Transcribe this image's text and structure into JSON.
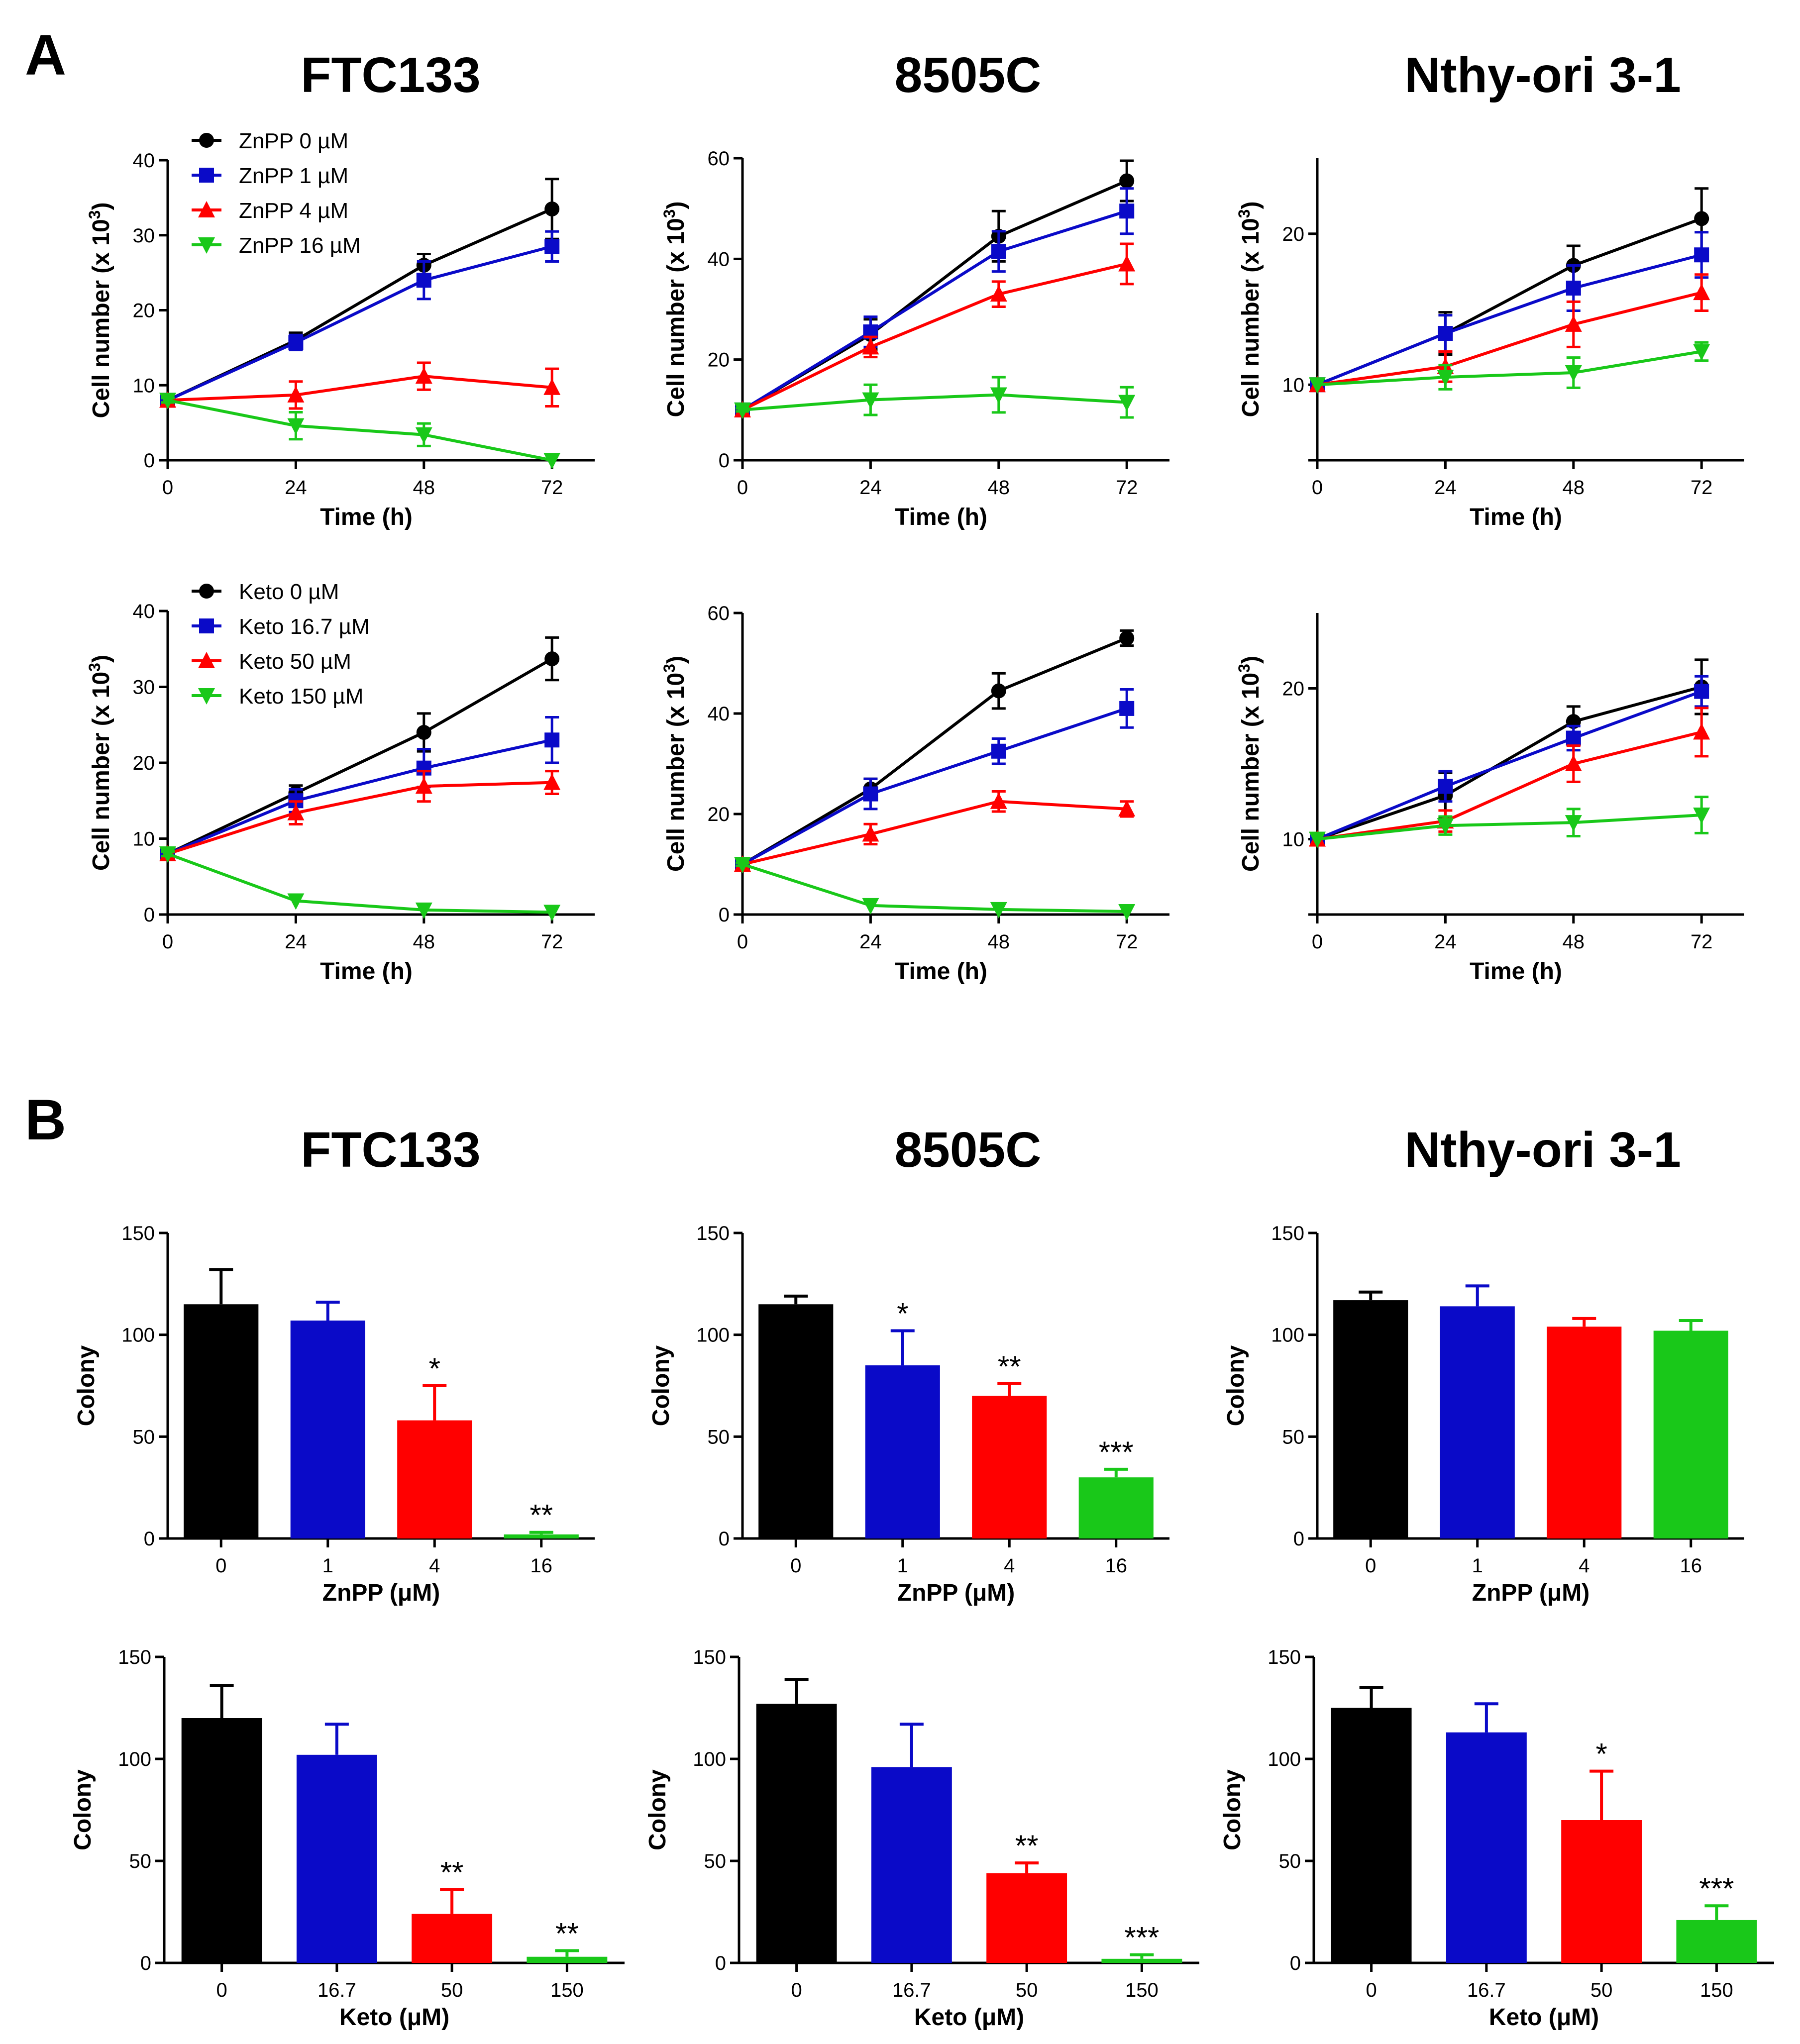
{
  "figure": {
    "panel_a_letter": "A",
    "panel_b_letter": "B",
    "columns": [
      "FTC133",
      "8505C",
      "Nthy-ori 3-1"
    ]
  },
  "colors": {
    "black": "#000000",
    "blue": "#0a0ac8",
    "red": "#ff0000",
    "green": "#19c819"
  },
  "chart_data": [
    {
      "id": "a-ftc133-znpp",
      "type": "line",
      "title": "FTC133",
      "xlabel": "Time (h)",
      "ylabel": "Cell number (x 10",
      "ylabel_sup": "3",
      "ylabel_close": ")",
      "x": [
        0,
        24,
        48,
        72
      ],
      "xlim": [
        0,
        80
      ],
      "ylim": [
        0,
        40
      ],
      "yticks": [
        0,
        10,
        20,
        30,
        40
      ],
      "legend": {
        "position": "top-left"
      },
      "series": [
        {
          "name": "ZnPP 0 µM",
          "color": "#000000",
          "marker": "circle",
          "values": [
            8,
            16,
            26,
            33.5
          ],
          "errors": [
            0.3,
            1,
            1.5,
            4
          ]
        },
        {
          "name": "ZnPP 1  µM",
          "color": "#0a0ac8",
          "marker": "square",
          "values": [
            8,
            15.7,
            24,
            28.5
          ],
          "errors": [
            0.3,
            1,
            2.5,
            2
          ]
        },
        {
          "name": "ZnPP 4  µM",
          "color": "#ff0000",
          "marker": "triangle-up",
          "values": [
            8,
            8.7,
            11.2,
            9.7
          ],
          "errors": [
            0.3,
            1.8,
            1.8,
            2.5
          ]
        },
        {
          "name": "ZnPP 16  µM",
          "color": "#19c819",
          "marker": "triangle-down",
          "values": [
            8,
            4.6,
            3.4,
            0
          ],
          "errors": [
            0.3,
            1.8,
            1.5,
            0.2
          ]
        }
      ]
    },
    {
      "id": "a-8505c-znpp",
      "type": "line",
      "title": "8505C",
      "xlabel": "Time (h)",
      "ylabel": "Cell number (x 10",
      "ylabel_sup": "3",
      "ylabel_close": ")",
      "x": [
        0,
        24,
        48,
        72
      ],
      "xlim": [
        0,
        80
      ],
      "ylim": [
        0,
        60
      ],
      "yticks": [
        0,
        20,
        40,
        60
      ],
      "series": [
        {
          "name": "ZnPP 0 µM",
          "color": "#000000",
          "marker": "circle",
          "values": [
            10,
            25,
            44.5,
            55.5
          ],
          "errors": [
            0.3,
            3,
            5,
            4
          ]
        },
        {
          "name": "ZnPP 1  µM",
          "color": "#0a0ac8",
          "marker": "square",
          "values": [
            10,
            25.5,
            41.5,
            49.5
          ],
          "errors": [
            0.3,
            3,
            4,
            4.5
          ]
        },
        {
          "name": "ZnPP 4  µM",
          "color": "#ff0000",
          "marker": "triangle-up",
          "values": [
            10,
            22.5,
            33,
            39
          ],
          "errors": [
            0.3,
            2,
            2.5,
            4
          ]
        },
        {
          "name": "ZnPP 16  µM",
          "color": "#19c819",
          "marker": "triangle-down",
          "values": [
            10,
            12,
            13,
            11.5
          ],
          "errors": [
            0.3,
            3,
            3.5,
            3
          ]
        }
      ]
    },
    {
      "id": "a-nthy-znpp",
      "type": "line",
      "title": "Nthy-ori 3-1",
      "xlabel": "Time (h)",
      "ylabel": "Cell number (x 10",
      "ylabel_sup": "3",
      "ylabel_close": ")",
      "x": [
        0,
        24,
        48,
        72
      ],
      "xlim": [
        0,
        80
      ],
      "ylim": [
        5,
        25
      ],
      "yticks": [
        10,
        20
      ],
      "yaxis_bottom_tick": true,
      "series": [
        {
          "name": "ZnPP 0 µM",
          "color": "#000000",
          "marker": "circle",
          "values": [
            10,
            13.4,
            17.9,
            21
          ],
          "errors": [
            0.2,
            1.4,
            1.3,
            2
          ]
        },
        {
          "name": "ZnPP 1  µM",
          "color": "#0a0ac8",
          "marker": "square",
          "values": [
            10,
            13.4,
            16.4,
            18.6
          ],
          "errors": [
            0.2,
            1.2,
            1.5,
            1.5
          ]
        },
        {
          "name": "ZnPP 4  µM",
          "color": "#ff0000",
          "marker": "triangle-up",
          "values": [
            10,
            11.2,
            14,
            16.1
          ],
          "errors": [
            0.2,
            1,
            1.5,
            1.2
          ]
        },
        {
          "name": "ZnPP 16  µM",
          "color": "#19c819",
          "marker": "triangle-down",
          "values": [
            10,
            10.5,
            10.8,
            12.2
          ],
          "errors": [
            0.2,
            0.8,
            1,
            0.6
          ]
        }
      ]
    },
    {
      "id": "a-ftc133-keto",
      "type": "line",
      "title": "FTC133",
      "xlabel": "Time (h)",
      "ylabel": "Cell number (x 10",
      "ylabel_sup": "3",
      "ylabel_close": ")",
      "x": [
        0,
        24,
        48,
        72
      ],
      "xlim": [
        0,
        80
      ],
      "ylim": [
        0,
        40
      ],
      "yticks": [
        0,
        10,
        20,
        30,
        40
      ],
      "legend": {
        "position": "top-left"
      },
      "series": [
        {
          "name": "Keto 0 µM",
          "color": "#000000",
          "marker": "circle",
          "values": [
            8,
            16,
            24,
            33.7
          ],
          "errors": [
            0.3,
            1,
            2.5,
            2.8
          ]
        },
        {
          "name": "Keto 16.7  µM",
          "color": "#0a0ac8",
          "marker": "square",
          "values": [
            8,
            15,
            19.3,
            23
          ],
          "errors": [
            0.3,
            1.5,
            2.5,
            3
          ]
        },
        {
          "name": "Keto 50  µM",
          "color": "#ff0000",
          "marker": "triangle-up",
          "values": [
            8,
            13.4,
            16.9,
            17.4
          ],
          "errors": [
            0.3,
            1.5,
            2,
            1.5
          ]
        },
        {
          "name": "Keto 150  µM",
          "color": "#19c819",
          "marker": "triangle-down",
          "values": [
            8,
            1.8,
            0.6,
            0.3
          ],
          "errors": [
            0.3,
            0.2,
            0.2,
            0.1
          ]
        }
      ]
    },
    {
      "id": "a-8505c-keto",
      "type": "line",
      "title": "8505C",
      "xlabel": "Time (h)",
      "ylabel": "Cell number (x 10",
      "ylabel_sup": "3",
      "ylabel_close": ")",
      "x": [
        0,
        24,
        48,
        72
      ],
      "xlim": [
        0,
        80
      ],
      "ylim": [
        0,
        60
      ],
      "yticks": [
        0,
        20,
        40,
        60
      ],
      "series": [
        {
          "name": "Keto 0 µM",
          "color": "#000000",
          "marker": "circle",
          "values": [
            10,
            25,
            44.5,
            55
          ],
          "errors": [
            0.3,
            2,
            3.5,
            1.5
          ]
        },
        {
          "name": "Keto 16.7  µM",
          "color": "#0a0ac8",
          "marker": "square",
          "values": [
            10,
            24,
            32.5,
            41
          ],
          "errors": [
            0.3,
            3,
            2.5,
            3.8
          ]
        },
        {
          "name": "Keto 50  µM",
          "color": "#ff0000",
          "marker": "triangle-up",
          "values": [
            10,
            16,
            22.5,
            21
          ],
          "errors": [
            0.3,
            2,
            2,
            1.5
          ]
        },
        {
          "name": "Keto 150  µM",
          "color": "#19c819",
          "marker": "triangle-down",
          "values": [
            10,
            1.8,
            1,
            0.6
          ],
          "errors": [
            0.3,
            0.2,
            0.2,
            0.2
          ]
        }
      ]
    },
    {
      "id": "a-nthy-keto",
      "type": "line",
      "title": "Nthy-ori 3-1",
      "xlabel": "Time (h)",
      "ylabel": "Cell number (x 10",
      "ylabel_sup": "3",
      "ylabel_close": ")",
      "x": [
        0,
        24,
        48,
        72
      ],
      "xlim": [
        0,
        80
      ],
      "ylim": [
        5,
        25
      ],
      "yticks": [
        10,
        20
      ],
      "yaxis_bottom_tick": true,
      "series": [
        {
          "name": "Keto 0 µM",
          "color": "#000000",
          "marker": "circle",
          "values": [
            10,
            12.9,
            17.8,
            20.1
          ],
          "errors": [
            0.2,
            1.5,
            1,
            1.8
          ]
        },
        {
          "name": "Keto 16.7  µM",
          "color": "#0a0ac8",
          "marker": "square",
          "values": [
            10,
            13.5,
            16.7,
            19.8
          ],
          "errors": [
            0.2,
            1,
            0.8,
            1
          ]
        },
        {
          "name": "Keto 50  µM",
          "color": "#ff0000",
          "marker": "triangle-up",
          "values": [
            10,
            11.2,
            15,
            17.1
          ],
          "errors": [
            0.2,
            0.7,
            1.2,
            1.6
          ]
        },
        {
          "name": "Keto 150  µM",
          "color": "#19c819",
          "marker": "triangle-down",
          "values": [
            10,
            10.9,
            11.1,
            11.6
          ],
          "errors": [
            0.2,
            0.6,
            0.9,
            1.2
          ]
        }
      ]
    },
    {
      "id": "b-ftc133-znpp",
      "type": "bar",
      "xlabel": "ZnPP (μM)",
      "ylabel": "Colony",
      "ylim": [
        0,
        150
      ],
      "yticks": [
        0,
        50,
        100,
        150
      ],
      "categories": [
        "0",
        "1",
        "4",
        "16"
      ],
      "values": [
        115,
        107,
        58,
        2
      ],
      "errors": [
        17,
        9,
        17,
        1
      ],
      "significance": [
        "",
        "",
        "*",
        "**"
      ]
    },
    {
      "id": "b-8505c-znpp",
      "type": "bar",
      "xlabel": "ZnPP (μM)",
      "ylabel": "Colony",
      "ylim": [
        0,
        150
      ],
      "yticks": [
        0,
        50,
        100,
        150
      ],
      "categories": [
        "0",
        "1",
        "4",
        "16"
      ],
      "values": [
        115,
        85,
        70,
        30
      ],
      "errors": [
        4,
        17,
        6,
        4
      ],
      "significance": [
        "",
        "*",
        "**",
        "***"
      ]
    },
    {
      "id": "b-nthy-znpp",
      "type": "bar",
      "xlabel": "ZnPP (μM)",
      "ylabel": "Colony",
      "ylim": [
        0,
        150
      ],
      "yticks": [
        0,
        50,
        100,
        150
      ],
      "categories": [
        "0",
        "1",
        "4",
        "16"
      ],
      "values": [
        117,
        114,
        104,
        102
      ],
      "errors": [
        4,
        10,
        4,
        5
      ],
      "significance": [
        "",
        "",
        "",
        ""
      ]
    },
    {
      "id": "b-ftc133-keto",
      "type": "bar",
      "xlabel": "Keto (μM)",
      "ylabel": "Colony",
      "ylim": [
        0,
        150
      ],
      "yticks": [
        0,
        50,
        100,
        150
      ],
      "categories": [
        "0",
        "16.7",
        "50",
        "150"
      ],
      "values": [
        120,
        102,
        24,
        3
      ],
      "errors": [
        16,
        15,
        12,
        3
      ],
      "significance": [
        "",
        "",
        "**",
        "**"
      ]
    },
    {
      "id": "b-8505c-keto",
      "type": "bar",
      "xlabel": "Keto (μM)",
      "ylabel": "Colony",
      "ylim": [
        0,
        150
      ],
      "yticks": [
        0,
        50,
        100,
        150
      ],
      "categories": [
        "0",
        "16.7",
        "50",
        "150"
      ],
      "values": [
        127,
        96,
        44,
        2
      ],
      "errors": [
        12,
        21,
        5,
        2
      ],
      "significance": [
        "",
        "",
        "**",
        "***"
      ]
    },
    {
      "id": "b-nthy-keto",
      "type": "bar",
      "xlabel": "Keto (μM)",
      "ylabel": "Colony",
      "ylim": [
        0,
        150
      ],
      "yticks": [
        0,
        50,
        100,
        150
      ],
      "categories": [
        "0",
        "16.7",
        "50",
        "150"
      ],
      "values": [
        125,
        113,
        70,
        21
      ],
      "errors": [
        10,
        14,
        24,
        7
      ],
      "significance": [
        "",
        "",
        "*",
        "***"
      ]
    }
  ]
}
